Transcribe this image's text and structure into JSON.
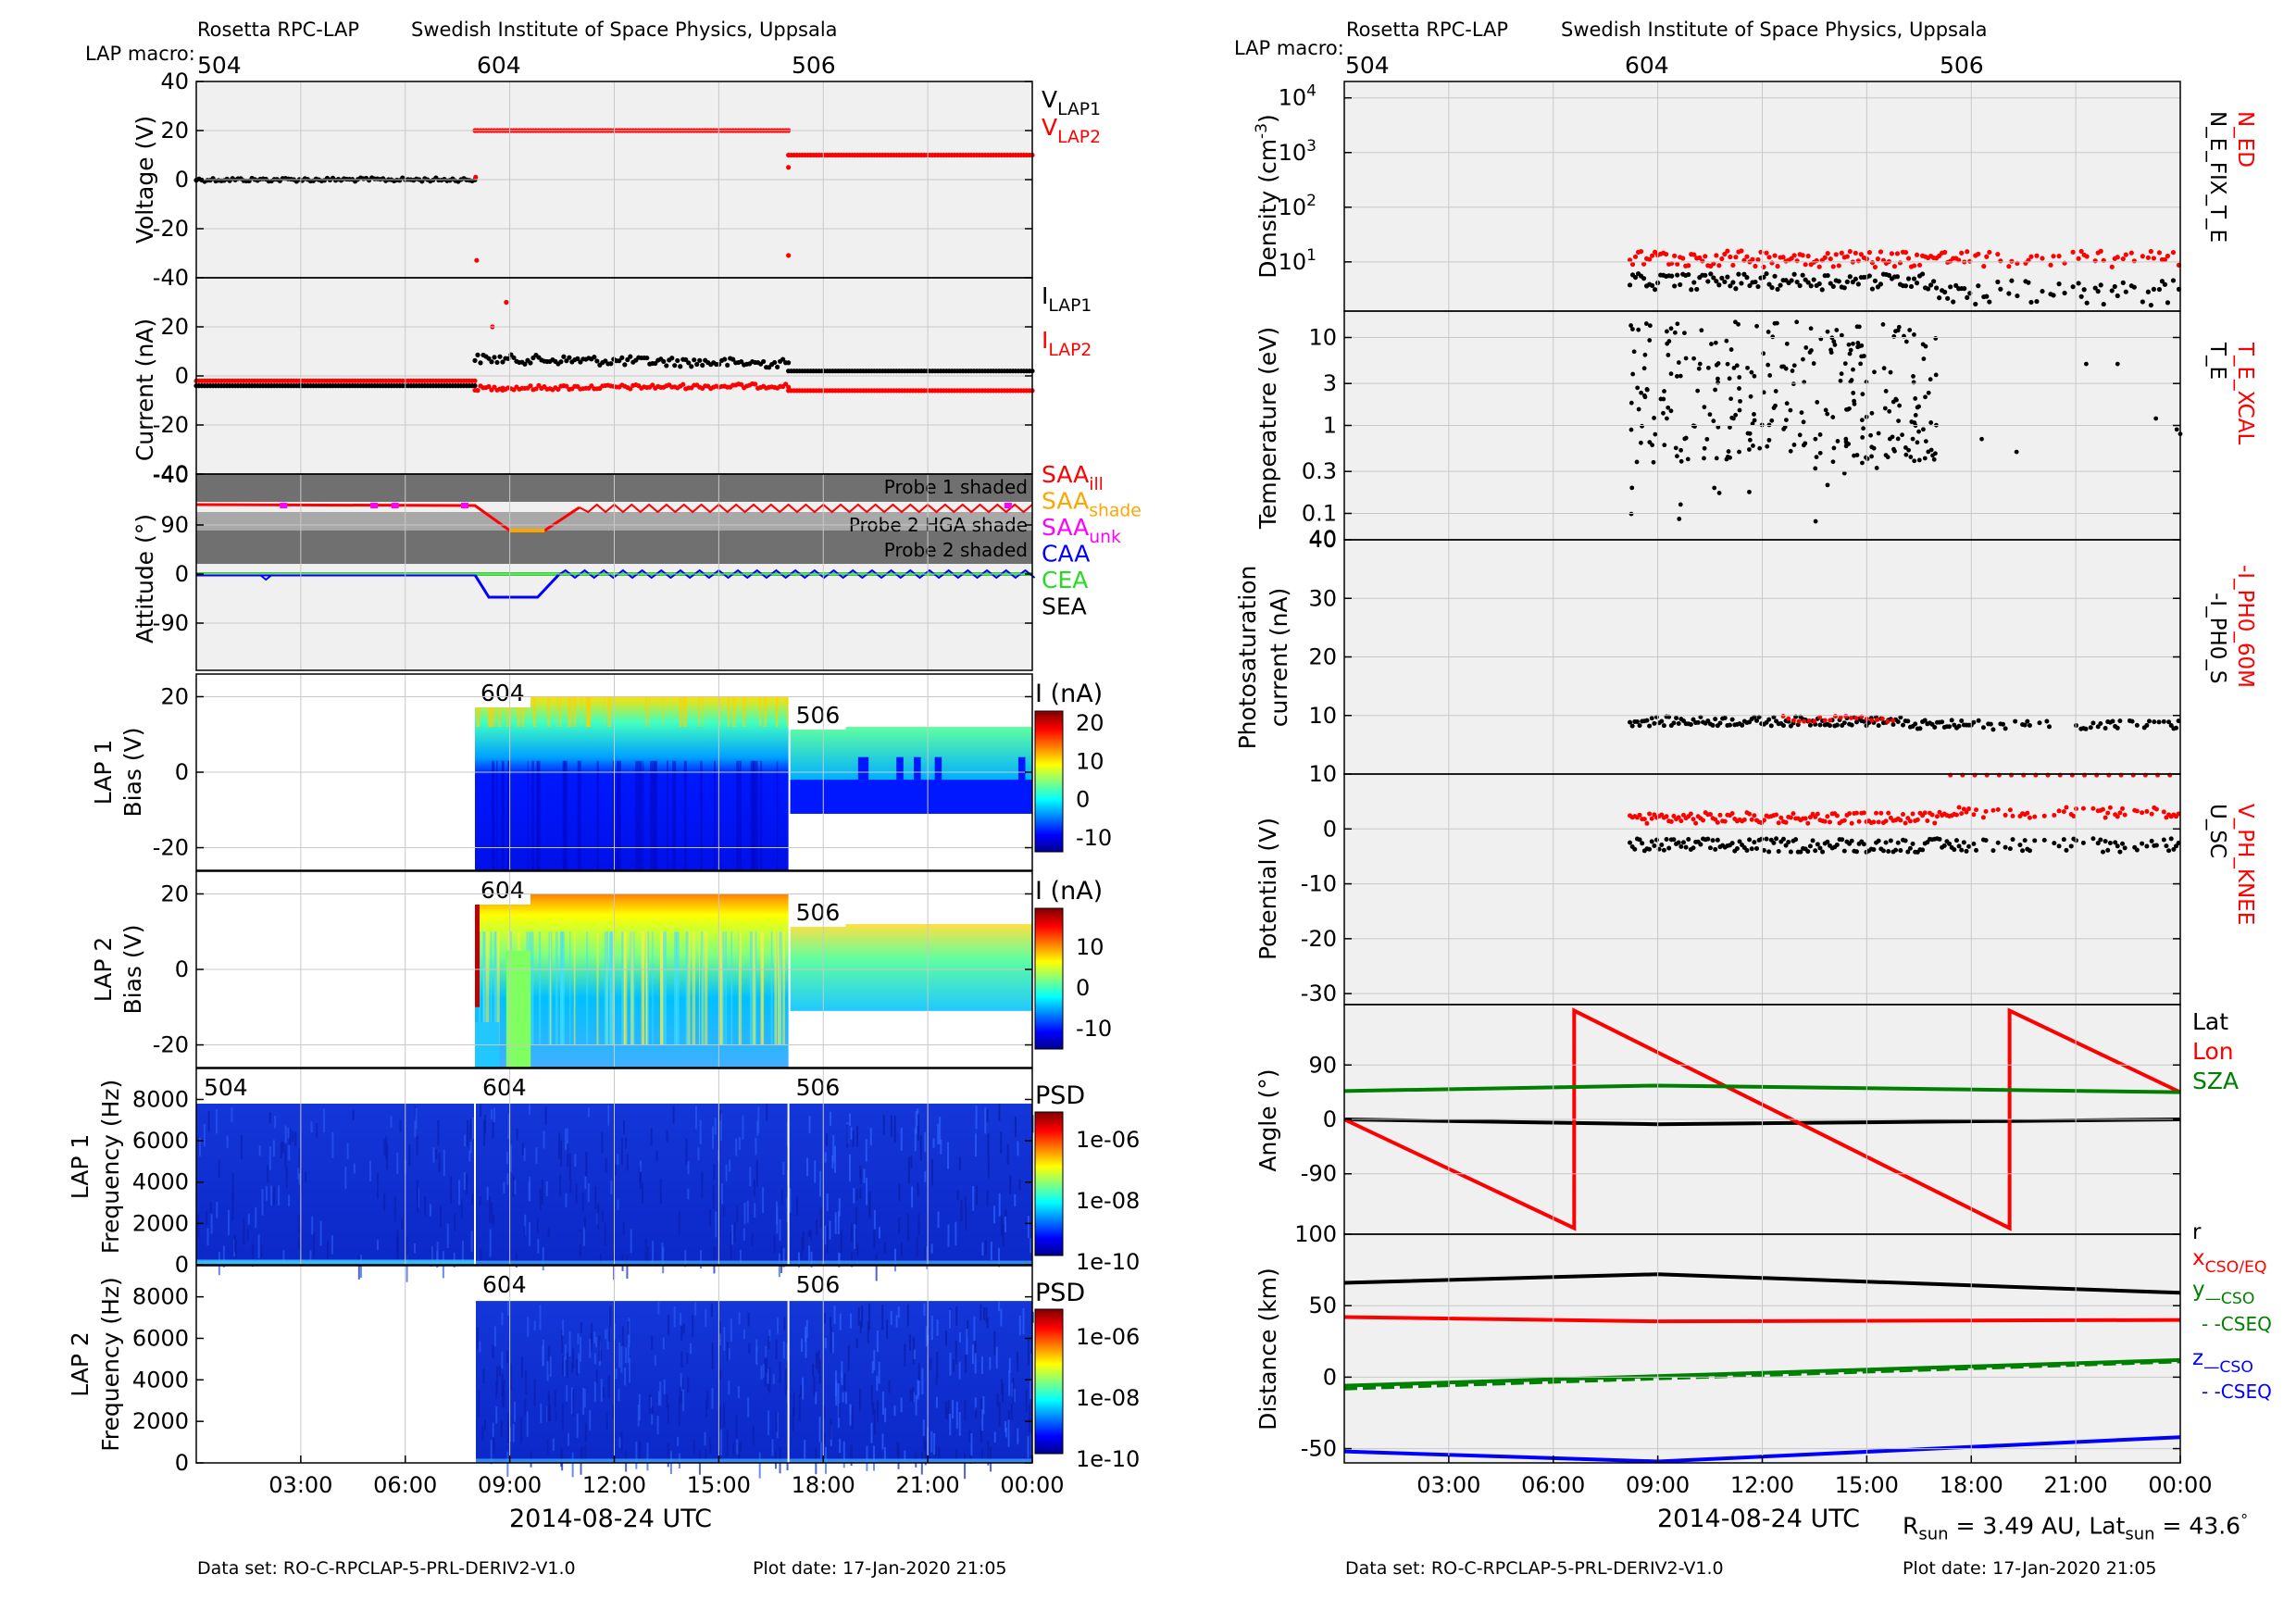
{
  "colors": {
    "black": "#000000",
    "red": "#ff0000",
    "green": "#008000",
    "lime": "#22dd22",
    "blue": "#0000ff",
    "orange": "#ffa500",
    "magenta": "#ff00ff",
    "panel_bg": "#f0f0f0",
    "shade_dark": "#707070",
    "shade_light": "#a8a8a8"
  },
  "header": {
    "instrument": "Rosetta RPC-LAP",
    "institute": "Swedish Institute of Space Physics, Uppsala",
    "macro_label": "LAP macro:",
    "macros": [
      "504",
      "604",
      "506"
    ]
  },
  "footer": {
    "dataset": "Data set: RO-C-RPCLAP-5-PRL-DERIV2-V1.0",
    "plot_date": "Plot date: 17-Jan-2020 21:05"
  },
  "sun_info": {
    "r_label": "R",
    "r_sub": "sun",
    "r_value": " = 3.49 AU, Lat",
    "lat_sub": "sun",
    "lat_value": " = 43.6",
    "degree": "°"
  },
  "chart_data": [
    {
      "type": "scatter",
      "title": "",
      "ylabel": "Voltage (V)",
      "ylim": [
        -40,
        40
      ],
      "yticks": [
        "40",
        "20",
        "0",
        "-20",
        "-40"
      ],
      "legend": [
        {
          "text": "V",
          "sub": "LAP1",
          "color": "#000000"
        },
        {
          "text": "V",
          "sub": "LAP2",
          "color": "#ff0000"
        }
      ],
      "series": [
        {
          "name": "VLAP1",
          "color": "#000000",
          "segments": [
            {
              "x": [
                0,
                8
              ],
              "y": [
                0,
                0
              ]
            }
          ]
        },
        {
          "name": "VLAP2",
          "color": "#ff0000",
          "segments": [
            {
              "x": [
                8,
                17
              ],
              "y": [
                20,
                20
              ]
            },
            {
              "x": [
                17,
                24
              ],
              "y": [
                10,
                10
              ]
            }
          ]
        }
      ]
    },
    {
      "type": "scatter",
      "title": "",
      "ylabel": "Current (nA)",
      "ylim": [
        -40,
        40
      ],
      "yticks": [
        "20",
        "0",
        "-20",
        "-40"
      ],
      "legend": [
        {
          "text": "I",
          "sub": "LAP1",
          "color": "#000000"
        },
        {
          "text": "I",
          "sub": "LAP2",
          "color": "#ff0000"
        }
      ],
      "series": [
        {
          "name": "ILAP1",
          "color": "#000000",
          "segments": [
            {
              "x": [
                0,
                8
              ],
              "y": [
                -4,
                -4
              ]
            },
            {
              "x": [
                8,
                17
              ],
              "y": [
                7,
                5
              ]
            },
            {
              "x": [
                17,
                24
              ],
              "y": [
                2,
                2
              ]
            }
          ]
        },
        {
          "name": "ILAP2",
          "color": "#ff0000",
          "segments": [
            {
              "x": [
                0,
                8
              ],
              "y": [
                -2,
                -2
              ]
            },
            {
              "x": [
                8,
                17
              ],
              "y": [
                -5,
                -4
              ]
            },
            {
              "x": [
                17,
                24
              ],
              "y": [
                -6,
                -6
              ]
            }
          ]
        }
      ]
    },
    {
      "type": "line",
      "title": "",
      "ylabel": "Attitude (°)",
      "yticks": [
        "90",
        "0",
        "-90"
      ],
      "shade_labels": [
        "Probe 1 shaded",
        "Probe 2 HGA shade",
        "Probe 2 shaded"
      ],
      "legend": [
        {
          "text": "SAA",
          "sub": "ill",
          "color": "#ff0000"
        },
        {
          "text": "SAA",
          "sub": "shade",
          "color": "#ffa500"
        },
        {
          "text": "SAA",
          "sub": "unk",
          "color": "#ff00ff"
        },
        {
          "text": "CAA",
          "sub": "",
          "color": "#0000ff"
        },
        {
          "text": "CEA",
          "sub": "",
          "color": "#22dd22"
        },
        {
          "text": "SEA",
          "sub": "",
          "color": "#000000"
        }
      ]
    },
    {
      "type": "heatmap",
      "title": "",
      "ylabel": [
        "LAP 1",
        "Bias (V)"
      ],
      "yticks": [
        "20",
        "0",
        "-20"
      ],
      "macros": [
        "604",
        "506"
      ],
      "colorbar": {
        "label": "I (nA)",
        "ticks": [
          "20",
          "10",
          "0",
          "-10"
        ]
      }
    },
    {
      "type": "heatmap",
      "title": "",
      "ylabel": [
        "LAP 2",
        "Bias (V)"
      ],
      "yticks": [
        "20",
        "0",
        "-20"
      ],
      "macros": [
        "604",
        "506"
      ],
      "colorbar": {
        "label": "I (nA)",
        "ticks": [
          "10",
          "0",
          "-10"
        ]
      }
    },
    {
      "type": "heatmap",
      "title": "",
      "ylabel": [
        "LAP 1",
        "Frequency (Hz)"
      ],
      "yticks": [
        "8000",
        "6000",
        "4000",
        "2000",
        "0"
      ],
      "macros": [
        "504",
        "604",
        "506"
      ],
      "colorbar": {
        "label": "PSD",
        "ticks": [
          "1e-06",
          "1e-08",
          "1e-10"
        ]
      }
    },
    {
      "type": "heatmap",
      "title": "",
      "ylabel": [
        "LAP 2",
        "Frequency (Hz)"
      ],
      "yticks": [
        "8000",
        "6000",
        "4000",
        "2000",
        "0"
      ],
      "macros": [
        "604",
        "506"
      ],
      "colorbar": {
        "label": "PSD",
        "ticks": [
          "1e-06",
          "1e-08",
          "1e-10"
        ]
      },
      "xticks": [
        "03:00",
        "06:00",
        "09:00",
        "12:00",
        "15:00",
        "18:00",
        "21:00",
        "00:00"
      ],
      "xlabel": "2014-08-24 UTC"
    },
    {
      "type": "scatter",
      "title": "",
      "ylabel": "Density (cm-3)",
      "ylabel_sup": "-3",
      "log": true,
      "ytick_mant": [
        "10",
        "10",
        "10",
        "10"
      ],
      "ytick_exp": [
        "4",
        "3",
        "2",
        "1"
      ],
      "legend": [
        {
          "text": "N_ED",
          "color": "#ff0000"
        },
        {
          "text": "N_E_FIX_T_E",
          "color": "#000000"
        }
      ],
      "series": [
        {
          "name": "N_ED",
          "color": "#ff0000"
        },
        {
          "name": "N_E_FIX_T_E",
          "color": "#000000"
        }
      ]
    },
    {
      "type": "scatter",
      "title": "",
      "ylabel": "Temperature (eV)",
      "log": true,
      "yticks": [
        "10",
        "3",
        "1",
        "0.3",
        "0.1",
        "40"
      ],
      "legend": [
        {
          "text": "T_E_XCAL",
          "color": "#ff0000"
        },
        {
          "text": "T_E",
          "color": "#000000"
        }
      ],
      "series": [
        {
          "name": "T_E",
          "color": "#000000"
        }
      ]
    },
    {
      "type": "scatter",
      "title": "",
      "ylabel": [
        "Photosaturation",
        "current (nA)"
      ],
      "yticks": [
        "30",
        "20",
        "10",
        "10"
      ],
      "legend": [
        {
          "text": "-I_PH0_60M",
          "color": "#ff0000"
        },
        {
          "text": "-I_PH0_S",
          "color": "#000000"
        }
      ],
      "series": [
        {
          "name": "-I_PH0_S",
          "color": "#000000",
          "level": 9
        },
        {
          "name": "-I_PH0_60M",
          "color": "#ff0000",
          "level": 9
        }
      ]
    },
    {
      "type": "scatter",
      "title": "",
      "ylabel": "Potential (V)",
      "yticks": [
        "0",
        "-10",
        "-20",
        "-30"
      ],
      "legend": [
        {
          "text": "V_PH_KNEE",
          "color": "#ff0000"
        },
        {
          "text": "U_SC",
          "color": "#000000"
        }
      ],
      "series": [
        {
          "name": "V_PH_KNEE",
          "color": "#ff0000",
          "level": 2
        },
        {
          "name": "U_SC",
          "color": "#000000",
          "level": -3
        }
      ]
    },
    {
      "type": "line",
      "title": "",
      "ylabel": "Angle (°)",
      "yticks": [
        "90",
        "0",
        "-90",
        "100"
      ],
      "legend": [
        {
          "text": "Lat",
          "color": "#000000"
        },
        {
          "text": "Lon",
          "color": "#ff0000"
        },
        {
          "text": "SZA",
          "color": "#008000"
        }
      ],
      "series": [
        {
          "name": "Lat",
          "color": "#000000",
          "x": [
            0,
            9,
            24
          ],
          "y": [
            0,
            -8,
            0
          ]
        },
        {
          "name": "Lon",
          "color": "#ff0000",
          "x": [
            0,
            6.6,
            6.6,
            19.1,
            19.1,
            24
          ],
          "y": [
            0,
            -180,
            180,
            -180,
            180,
            45
          ]
        },
        {
          "name": "SZA",
          "color": "#008000",
          "x": [
            0,
            9,
            24
          ],
          "y": [
            47,
            56,
            45
          ]
        }
      ]
    },
    {
      "type": "line",
      "title": "",
      "ylabel": "Distance (km)",
      "yticks": [
        "50",
        "0",
        "-50"
      ],
      "legend": [
        {
          "text": "r",
          "color": "#000000"
        },
        {
          "text": "x",
          "sub": "CSO/EQ",
          "color": "#ff0000"
        },
        {
          "text": "y",
          "sub": "—CSO",
          "color": "#008000"
        },
        {
          "text": "- -CSEQ",
          "color": "#008000"
        },
        {
          "text": "z",
          "sub": "—CSO",
          "color": "#0000ff"
        },
        {
          "text": "- -CSEQ",
          "color": "#0000ff"
        }
      ],
      "series": [
        {
          "name": "r",
          "color": "#000000",
          "x": [
            0,
            9,
            24
          ],
          "y": [
            66,
            72,
            59
          ]
        },
        {
          "name": "x",
          "color": "#ff0000",
          "x": [
            0,
            9,
            24
          ],
          "y": [
            42,
            39,
            40
          ]
        },
        {
          "name": "y",
          "color": "#008000",
          "x": [
            0,
            24
          ],
          "y": [
            -6,
            12
          ]
        },
        {
          "name": "z",
          "color": "#0000ff",
          "x": [
            0,
            9,
            24
          ],
          "y": [
            -52,
            -59,
            -42
          ]
        }
      ],
      "xticks": [
        "03:00",
        "06:00",
        "09:00",
        "12:00",
        "15:00",
        "18:00",
        "21:00",
        "00:00"
      ],
      "xlabel": "2014-08-24 UTC"
    }
  ]
}
